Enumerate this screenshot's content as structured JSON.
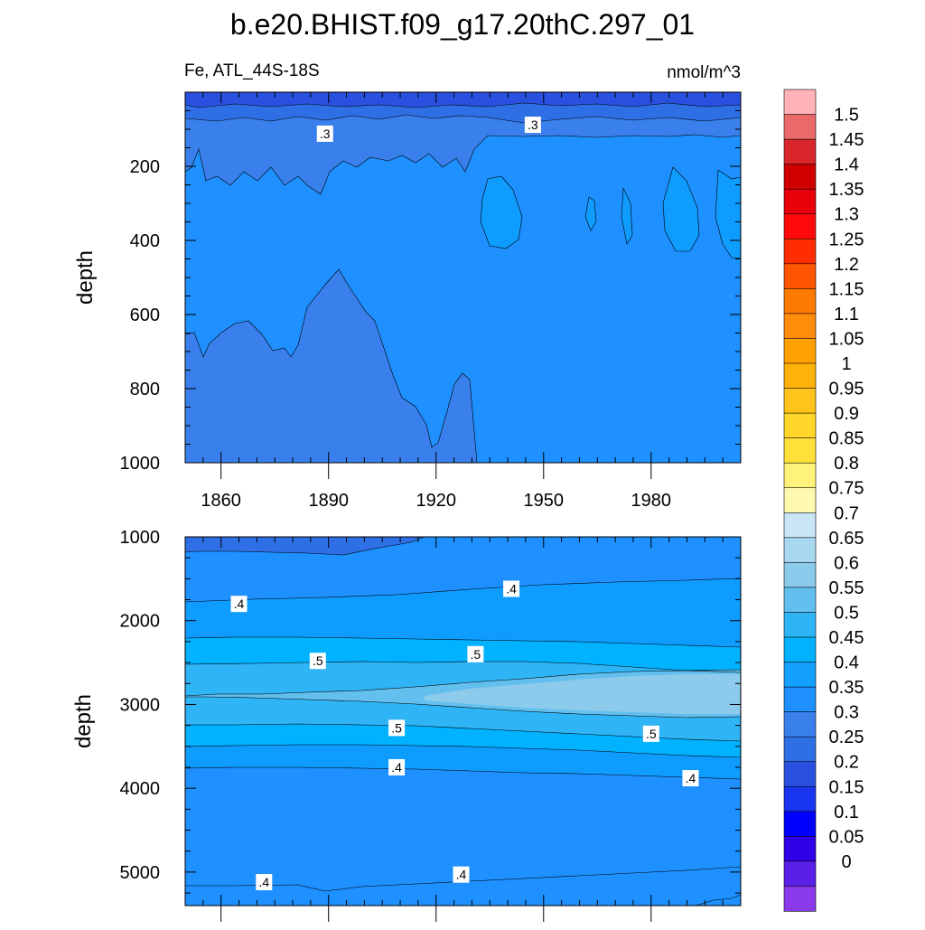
{
  "chart_data": {
    "type": "contour",
    "title": "b.e20.BHIST.f09_g17.20thC.297_01",
    "subtitle_left": "Fe, ATL_44S-18S",
    "subtitle_right": "nmol/m^3",
    "x_ticks": [
      "1860",
      "1890",
      "1920",
      "1950",
      "1980"
    ],
    "x_tick_values": [
      1860,
      1890,
      1920,
      1950,
      1980
    ],
    "xlim": [
      1850,
      2005
    ],
    "panels": [
      {
        "name": "upper",
        "ylabel": "depth",
        "ylim": [
          0,
          1000
        ],
        "y_ticks": [
          "200",
          "400",
          "600",
          "800",
          "1000"
        ],
        "y_tick_values": [
          200,
          400,
          600,
          800,
          1000
        ],
        "contour_labels": [
          {
            "text": ".3",
            "year": 1889,
            "depth": 112
          },
          {
            "text": ".3",
            "year": 1947,
            "depth": 88
          }
        ],
        "regions": [
          {
            "level": "0.35-0.4",
            "color": "#1E90FF"
          },
          {
            "level": "0.3-0.35",
            "color": "#3A80EC"
          },
          {
            "level": "0.25-0.3",
            "color": "#2F6FE5"
          },
          {
            "level": "0.2-0.25",
            "color": "#2A50E0"
          },
          {
            "level": "0.4-0.45",
            "color": "#0F9CFF"
          }
        ]
      },
      {
        "name": "lower",
        "ylabel": "depth",
        "ylim": [
          1000,
          5400
        ],
        "y_ticks": [
          "1000",
          "2000",
          "3000",
          "4000",
          "5000"
        ],
        "y_tick_values": [
          1000,
          2000,
          3000,
          4000,
          5000
        ],
        "contour_labels": [
          {
            "text": ".4",
            "year": 1865,
            "depth": 1800
          },
          {
            "text": ".4",
            "year": 1941,
            "depth": 1620
          },
          {
            "text": ".5",
            "year": 1887,
            "depth": 2480
          },
          {
            "text": ".5",
            "year": 1931,
            "depth": 2400
          },
          {
            "text": ".5",
            "year": 1909,
            "depth": 3280
          },
          {
            "text": ".5",
            "year": 1980,
            "depth": 3350
          },
          {
            "text": ".4",
            "year": 1909,
            "depth": 3750
          },
          {
            "text": ".4",
            "year": 1991,
            "depth": 3880
          },
          {
            "text": ".4",
            "year": 1872,
            "depth": 5120
          },
          {
            "text": ".4",
            "year": 1927,
            "depth": 5030
          }
        ]
      }
    ],
    "colorbar": {
      "levels": [
        "1.5",
        "1.45",
        "1.4",
        "1.35",
        "1.3",
        "1.25",
        "1.2",
        "1.15",
        "1.1",
        "1.05",
        "1",
        "0.95",
        "0.9",
        "0.85",
        "0.8",
        "0.75",
        "0.7",
        "0.65",
        "0.6",
        "0.55",
        "0.5",
        "0.45",
        "0.4",
        "0.35",
        "0.3",
        "0.25",
        "0.2",
        "0.15",
        "0.1",
        "0.05",
        "0"
      ],
      "colors": [
        "#FFB3B8",
        "#EA6A6A",
        "#D9262B",
        "#D00000",
        "#E8000B",
        "#FF0A0A",
        "#FF2D00",
        "#FF5500",
        "#FF7A00",
        "#FF8C0A",
        "#FFA000",
        "#FFB30A",
        "#FFC41A",
        "#FFD52A",
        "#FFE13A",
        "#FFF27A",
        "#FFF9B0",
        "#C8E6F5",
        "#A8D8F0",
        "#8CCBEC",
        "#62BFEE",
        "#2FB4F5",
        "#00B2FF",
        "#14A0FF",
        "#1E90FF",
        "#3A80EC",
        "#2F6FE5",
        "#2A50E0",
        "#1A35F0",
        "#0000FF",
        "#3000E8",
        "#5A20E8",
        "#8A3AEA"
      ]
    }
  }
}
